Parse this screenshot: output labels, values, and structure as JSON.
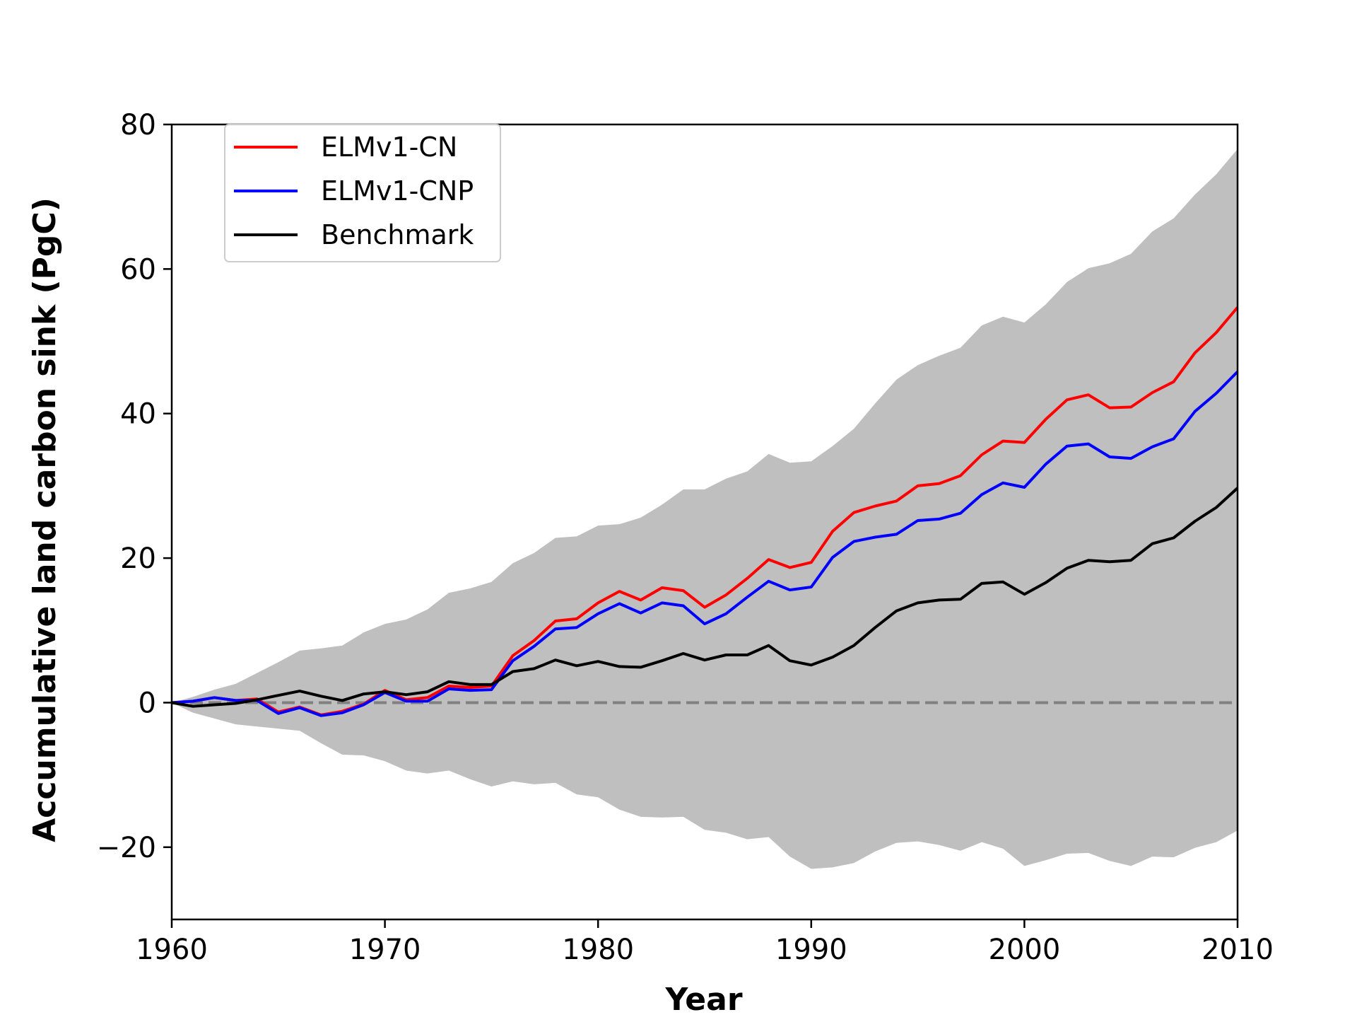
{
  "chart_data": {
    "type": "line",
    "title": "",
    "xlabel": "Year",
    "ylabel": "Accumulative land carbon sink (PgC)",
    "xlim": [
      1960,
      2010
    ],
    "ylim": [
      -30,
      80
    ],
    "xticks": [
      1960,
      1970,
      1980,
      1990,
      2000,
      2010
    ],
    "xtick_labels": [
      "1960",
      "1970",
      "1980",
      "1990",
      "2000",
      "2010"
    ],
    "yticks": [
      -20,
      0,
      20,
      40,
      60,
      80
    ],
    "ytick_labels": [
      "−20",
      "0",
      "20",
      "40",
      "60",
      "80"
    ],
    "grid": false,
    "legend_position": "top-left",
    "reference_line": {
      "y": 0,
      "style": "dashed",
      "color": "#808080"
    },
    "x": [
      1960,
      1961,
      1962,
      1963,
      1964,
      1965,
      1966,
      1967,
      1968,
      1969,
      1970,
      1971,
      1972,
      1973,
      1974,
      1975,
      1976,
      1977,
      1978,
      1979,
      1980,
      1981,
      1982,
      1983,
      1984,
      1985,
      1986,
      1987,
      1988,
      1989,
      1990,
      1991,
      1992,
      1993,
      1994,
      1995,
      1996,
      1997,
      1998,
      1999,
      2000,
      2001,
      2002,
      2003,
      2004,
      2005,
      2006,
      2007,
      2008,
      2009,
      2010
    ],
    "band": {
      "color": "#bfbfbf",
      "upper": [
        0,
        0.8,
        1.8,
        2.6,
        4.1,
        5.6,
        7.2,
        7.5,
        7.9,
        9.7,
        10.9,
        11.5,
        12.9,
        15.2,
        15.8,
        16.7,
        19.3,
        20.7,
        22.8,
        23.0,
        24.5,
        24.7,
        25.6,
        27.4,
        29.5,
        29.5,
        31.0,
        32.0,
        34.4,
        33.2,
        33.4,
        35.5,
        37.9,
        41.4,
        44.7,
        46.7,
        48.0,
        49.1,
        52.2,
        53.4,
        52.6,
        55.1,
        58.2,
        60.1,
        60.8,
        62.1,
        65.2,
        67.0,
        70.3,
        73.1,
        76.6
      ],
      "lower": [
        0,
        -1.4,
        -2.2,
        -3.0,
        -3.3,
        -3.6,
        -3.9,
        -5.6,
        -7.2,
        -7.3,
        -8.1,
        -9.4,
        -9.8,
        -9.4,
        -10.6,
        -11.6,
        -10.9,
        -11.3,
        -11.1,
        -12.7,
        -13.1,
        -14.8,
        -15.8,
        -15.9,
        -15.8,
        -17.6,
        -18.0,
        -18.9,
        -18.6,
        -21.3,
        -23.0,
        -22.8,
        -22.2,
        -20.6,
        -19.4,
        -19.2,
        -19.7,
        -20.5,
        -19.3,
        -20.2,
        -22.6,
        -21.8,
        -20.9,
        -20.8,
        -21.9,
        -22.6,
        -21.3,
        -21.4,
        -20.1,
        -19.3,
        -17.7
      ]
    },
    "series": [
      {
        "name": "ELMv1-CN",
        "color": "#ff0000",
        "values": [
          0,
          0.2,
          0.7,
          0.3,
          0.5,
          -1.3,
          -0.6,
          -1.7,
          -1.2,
          -0.2,
          1.7,
          0.4,
          0.7,
          2.3,
          2.1,
          2.3,
          6.5,
          8.6,
          11.3,
          11.6,
          13.8,
          15.4,
          14.2,
          15.9,
          15.5,
          13.2,
          14.9,
          17.2,
          19.8,
          18.7,
          19.4,
          23.7,
          26.3,
          27.2,
          27.9,
          30.0,
          30.3,
          31.4,
          34.3,
          36.2,
          36.0,
          39.2,
          41.9,
          42.6,
          40.8,
          40.9,
          42.9,
          44.4,
          48.4,
          51.2,
          54.7
        ]
      },
      {
        "name": "ELMv1-CNP",
        "color": "#0000ff",
        "values": [
          0,
          0.2,
          0.7,
          0.3,
          0.3,
          -1.5,
          -0.7,
          -1.8,
          -1.4,
          -0.3,
          1.4,
          0.2,
          0.2,
          1.9,
          1.7,
          1.8,
          5.8,
          7.8,
          10.2,
          10.4,
          12.3,
          13.7,
          12.4,
          13.8,
          13.4,
          10.9,
          12.3,
          14.6,
          16.8,
          15.6,
          16.0,
          20.1,
          22.3,
          22.9,
          23.3,
          25.2,
          25.4,
          26.2,
          28.8,
          30.4,
          29.8,
          33.0,
          35.5,
          35.8,
          34.0,
          33.8,
          35.4,
          36.5,
          40.3,
          42.8,
          45.8
        ]
      },
      {
        "name": "Benchmark",
        "color": "#000000",
        "values": [
          0,
          -0.5,
          -0.3,
          -0.1,
          0.4,
          1.0,
          1.6,
          0.9,
          0.3,
          1.2,
          1.5,
          1.1,
          1.5,
          2.9,
          2.5,
          2.5,
          4.3,
          4.7,
          5.9,
          5.1,
          5.7,
          5.0,
          4.9,
          5.8,
          6.8,
          5.9,
          6.6,
          6.6,
          7.9,
          5.8,
          5.2,
          6.3,
          7.9,
          10.4,
          12.7,
          13.8,
          14.2,
          14.3,
          16.5,
          16.7,
          15.0,
          16.6,
          18.6,
          19.7,
          19.5,
          19.7,
          22.0,
          22.8,
          25.1,
          27.0,
          29.7
        ]
      }
    ]
  }
}
